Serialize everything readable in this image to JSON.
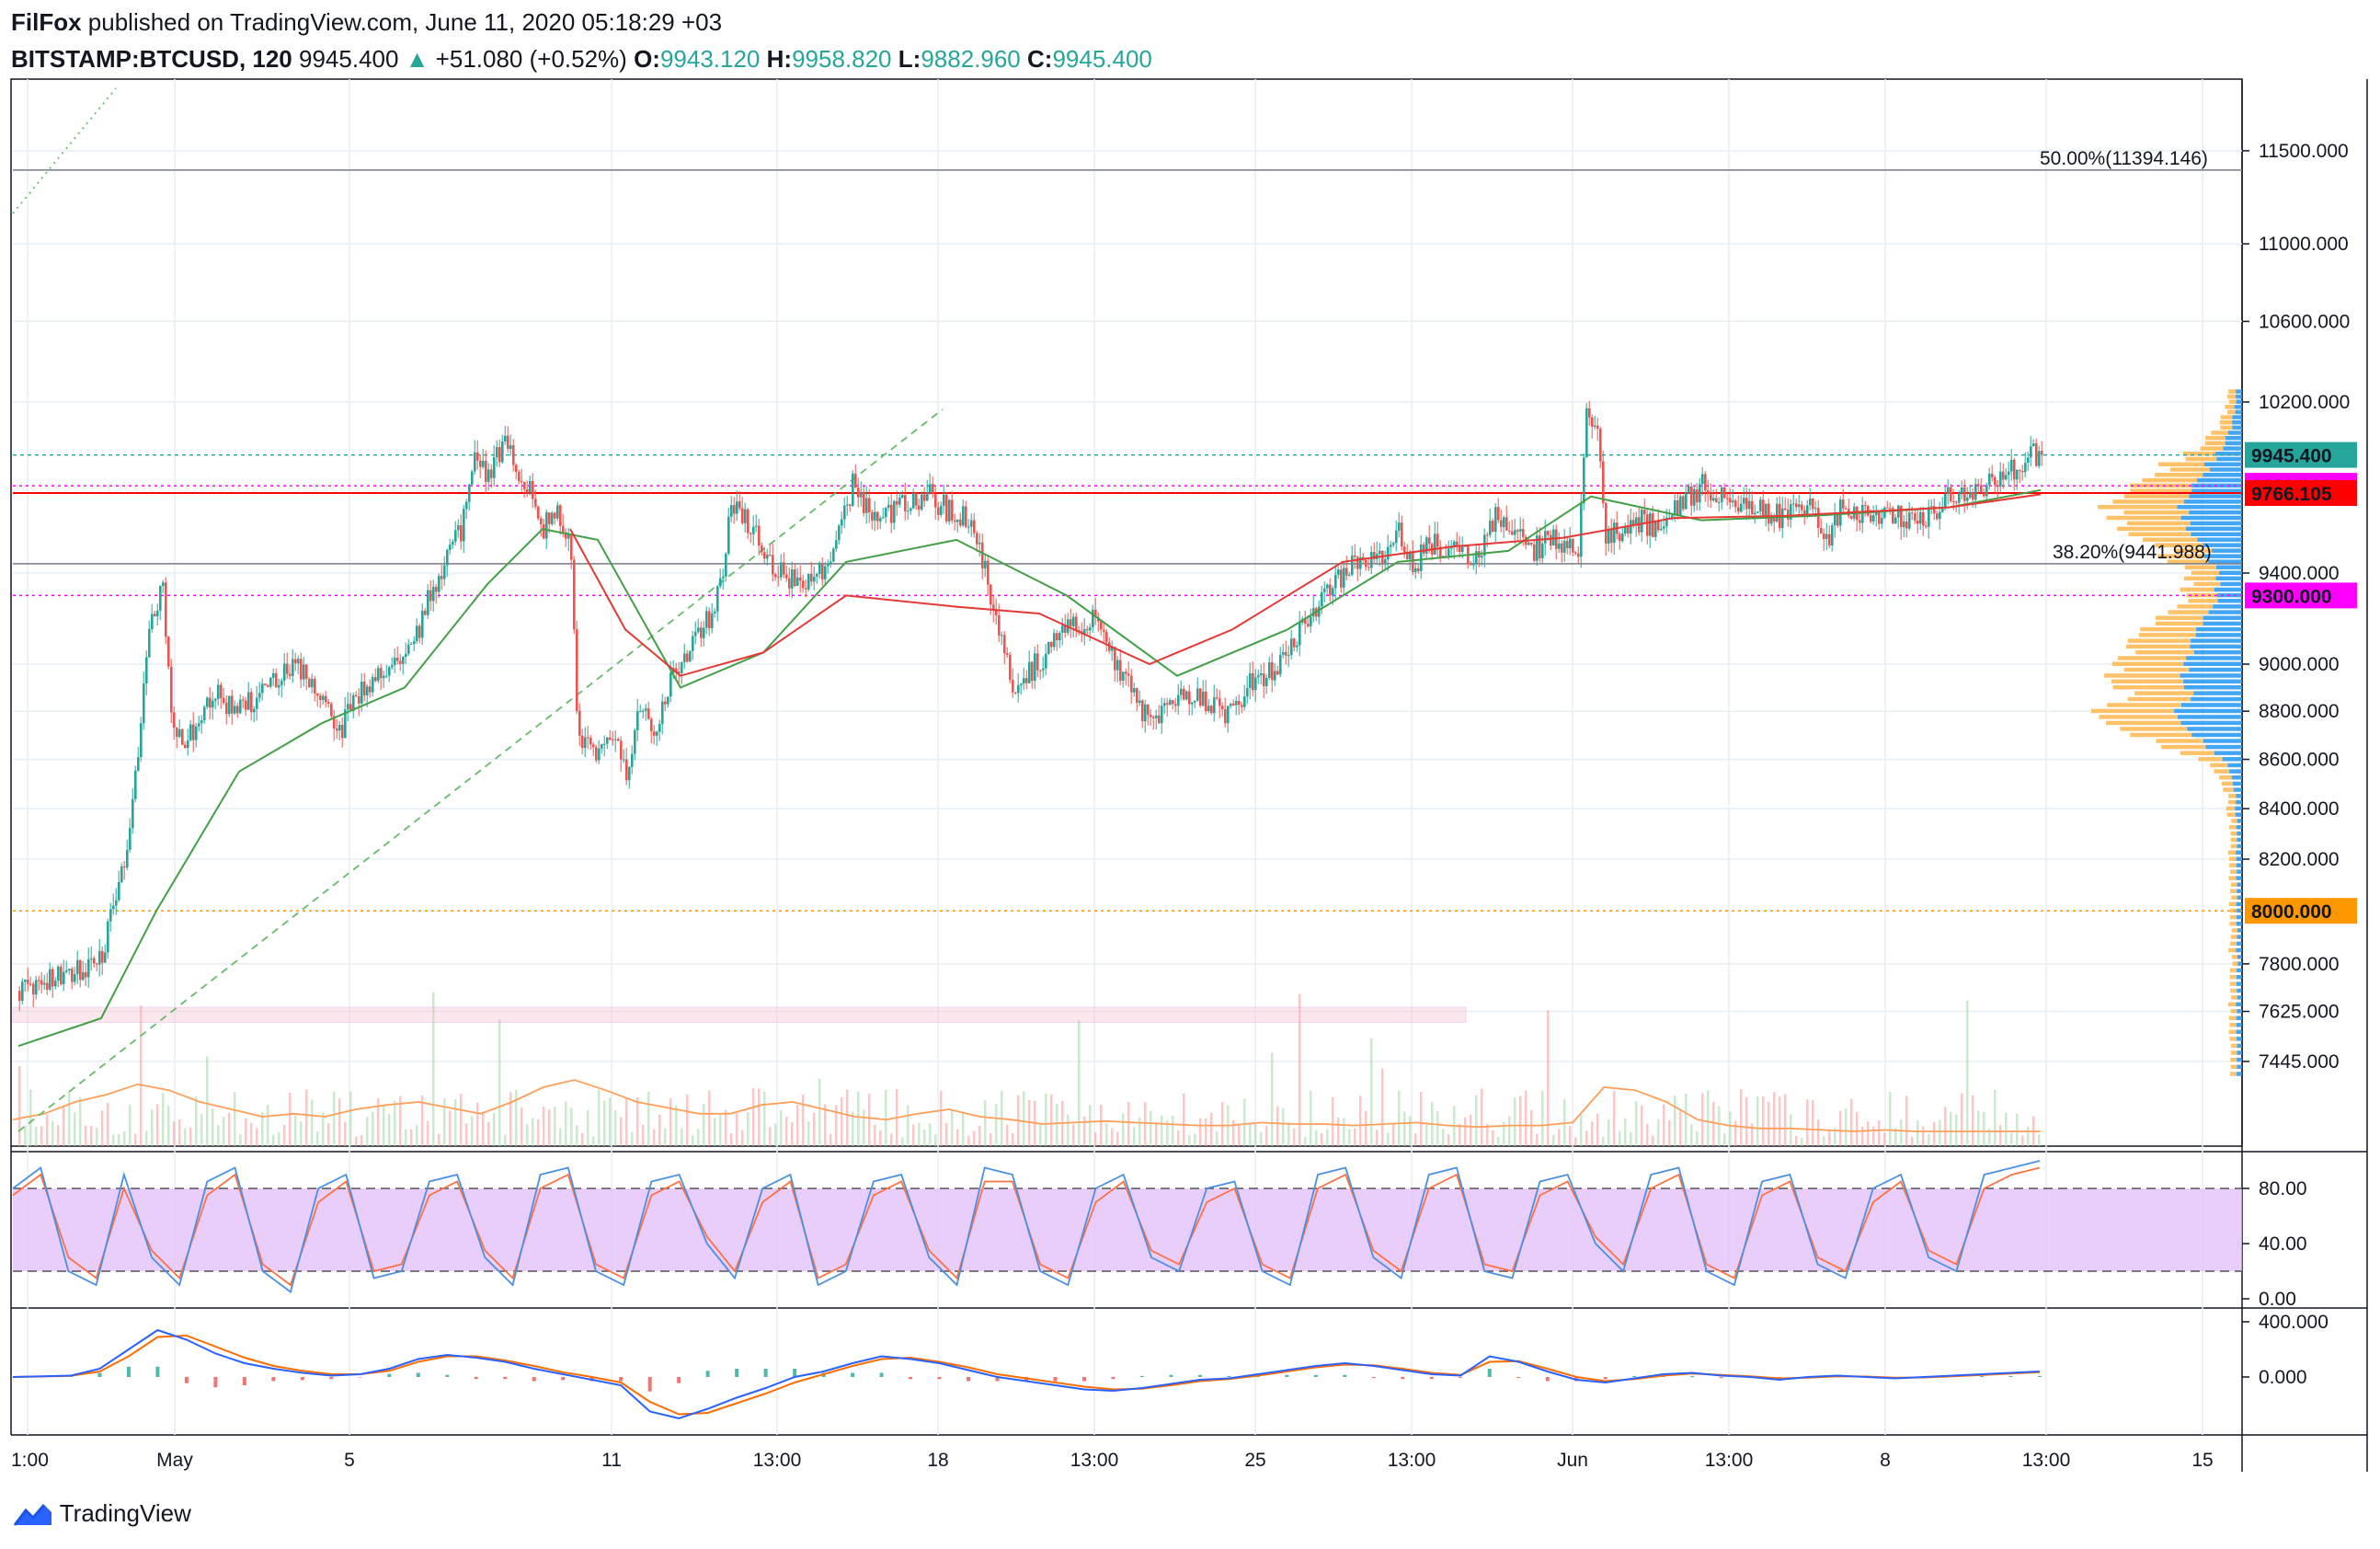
{
  "header": {
    "author": "FilFox",
    "published": " published on TradingView.com, June 11, 2020 05:18:29 +03",
    "symbol": "BITSTAMP:BTCUSD, 120",
    "last": "9945.400",
    "arrow": "▲",
    "change": "+51.080 (+0.52%)",
    "o_label": "O:",
    "o": "9943.120",
    "h_label": "H:",
    "h": "9958.820",
    "l_label": "L:",
    "l": "9882.960",
    "c_label": "C:",
    "c": "9945.400"
  },
  "footer": {
    "brand": "TradingView"
  },
  "colors": {
    "up": "#26a69a",
    "down": "#ef5350",
    "grid": "#e6eef5",
    "ma_green": "#43a047",
    "ma_red": "#e53935",
    "magenta": "#ff00ff",
    "red_level": "#ff0000",
    "orange": "#ff9800",
    "stoch_band": "#e1bdfb",
    "stoch_k": "#4a90e2",
    "stoch_d": "#ff7043",
    "vp_blue": "#2196f3",
    "vp_orange": "#ffb74d"
  },
  "chart_data": {
    "type": "candlestick",
    "price_axis": {
      "ticks": [
        "11500.000",
        "11000.000",
        "10600.000",
        "10200.000",
        "9400.000",
        "9000.000",
        "8800.000",
        "8600.000",
        "8400.000",
        "8200.000",
        "7800.000",
        "7625.000",
        "7445.000"
      ],
      "scale": "log"
    },
    "time_axis": {
      "ticks": [
        "1:00",
        "May",
        "5",
        "11",
        "13:00",
        "18",
        "13:00",
        "25",
        "13:00",
        "Jun",
        "13:00",
        "8",
        "13:00",
        "15"
      ]
    },
    "price_tags": [
      {
        "value": 9945.4,
        "label": "9945.400",
        "color": "#26a69a",
        "text_color": "#131722"
      },
      {
        "value": 9800,
        "label": "9800.000",
        "color": "#ff00ff",
        "text_color": "#ffffff"
      },
      {
        "value": 9766.105,
        "label": "9766.105",
        "color": "#ff0000",
        "text_color": "#131722"
      },
      {
        "value": 9300,
        "label": "9300.000",
        "color": "#ff00ff",
        "text_color": "#ffffff"
      },
      {
        "value": 8000,
        "label": "8000.000",
        "color": "#ff9800",
        "text_color": "#131722"
      }
    ],
    "fib_levels": [
      {
        "label": "50.00%(11394.146)",
        "value": 11394.146
      },
      {
        "label": "38.20%(9441.988)",
        "value": 9441.988
      }
    ],
    "close_path": [
      [
        0,
        7700
      ],
      [
        15,
        7750
      ],
      [
        30,
        7820
      ],
      [
        40,
        8300
      ],
      [
        45,
        8900
      ],
      [
        48,
        9200
      ],
      [
        52,
        9330
      ],
      [
        55,
        8800
      ],
      [
        60,
        8650
      ],
      [
        70,
        8880
      ],
      [
        80,
        8800
      ],
      [
        90,
        8900
      ],
      [
        100,
        9000
      ],
      [
        110,
        8850
      ],
      [
        115,
        8700
      ],
      [
        125,
        8900
      ],
      [
        135,
        9000
      ],
      [
        145,
        9150
      ],
      [
        150,
        9350
      ],
      [
        155,
        9450
      ],
      [
        160,
        9600
      ],
      [
        165,
        9950
      ],
      [
        170,
        9850
      ],
      [
        175,
        10000
      ],
      [
        180,
        9900
      ],
      [
        185,
        9800
      ],
      [
        190,
        9600
      ],
      [
        195,
        9700
      ],
      [
        200,
        9500
      ],
      [
        202,
        8750
      ],
      [
        205,
        8650
      ],
      [
        210,
        8600
      ],
      [
        215,
        8700
      ],
      [
        220,
        8550
      ],
      [
        225,
        8800
      ],
      [
        230,
        8700
      ],
      [
        235,
        8900
      ],
      [
        240,
        9000
      ],
      [
        245,
        9100
      ],
      [
        250,
        9200
      ],
      [
        255,
        9400
      ],
      [
        258,
        9750
      ],
      [
        262,
        9650
      ],
      [
        268,
        9550
      ],
      [
        275,
        9400
      ],
      [
        282,
        9350
      ],
      [
        290,
        9400
      ],
      [
        298,
        9600
      ],
      [
        302,
        9800
      ],
      [
        310,
        9650
      ],
      [
        320,
        9700
      ],
      [
        330,
        9750
      ],
      [
        340,
        9650
      ],
      [
        345,
        9650
      ],
      [
        350,
        9400
      ],
      [
        355,
        9150
      ],
      [
        360,
        8900
      ],
      [
        365,
        8950
      ],
      [
        372,
        9050
      ],
      [
        380,
        9150
      ],
      [
        390,
        9200
      ],
      [
        398,
        9000
      ],
      [
        405,
        8850
      ],
      [
        410,
        8750
      ],
      [
        415,
        8800
      ],
      [
        420,
        8850
      ],
      [
        430,
        8850
      ],
      [
        437,
        8780
      ],
      [
        445,
        8900
      ],
      [
        452,
        8950
      ],
      [
        460,
        9050
      ],
      [
        468,
        9200
      ],
      [
        475,
        9350
      ],
      [
        485,
        9450
      ],
      [
        495,
        9500
      ],
      [
        500,
        9600
      ],
      [
        505,
        9400
      ],
      [
        510,
        9550
      ],
      [
        520,
        9500
      ],
      [
        528,
        9450
      ],
      [
        535,
        9650
      ],
      [
        540,
        9600
      ],
      [
        548,
        9500
      ],
      [
        555,
        9550
      ],
      [
        565,
        9500
      ],
      [
        568,
        10150
      ],
      [
        572,
        10100
      ],
      [
        575,
        9550
      ],
      [
        585,
        9650
      ],
      [
        595,
        9600
      ],
      [
        600,
        9700
      ],
      [
        610,
        9800
      ],
      [
        620,
        9750
      ],
      [
        630,
        9700
      ],
      [
        640,
        9650
      ],
      [
        650,
        9700
      ],
      [
        655,
        9550
      ],
      [
        660,
        9700
      ],
      [
        670,
        9650
      ],
      [
        680,
        9650
      ],
      [
        690,
        9650
      ],
      [
        700,
        9750
      ],
      [
        710,
        9800
      ],
      [
        720,
        9850
      ],
      [
        725,
        9900
      ],
      [
        730,
        9950
      ],
      [
        733,
        9945.4
      ]
    ],
    "ma_green_path": [
      [
        0,
        7500
      ],
      [
        30,
        7600
      ],
      [
        50,
        8000
      ],
      [
        80,
        8550
      ],
      [
        110,
        8750
      ],
      [
        140,
        8900
      ],
      [
        170,
        9350
      ],
      [
        190,
        9600
      ],
      [
        210,
        9550
      ],
      [
        240,
        8900
      ],
      [
        270,
        9050
      ],
      [
        300,
        9450
      ],
      [
        340,
        9550
      ],
      [
        380,
        9300
      ],
      [
        420,
        8950
      ],
      [
        460,
        9150
      ],
      [
        500,
        9450
      ],
      [
        540,
        9500
      ],
      [
        570,
        9750
      ],
      [
        610,
        9640
      ],
      [
        650,
        9660
      ],
      [
        700,
        9700
      ],
      [
        733,
        9780
      ]
    ],
    "ma_red_path": [
      [
        200,
        9600
      ],
      [
        220,
        9150
      ],
      [
        240,
        8950
      ],
      [
        270,
        9050
      ],
      [
        300,
        9300
      ],
      [
        340,
        9250
      ],
      [
        370,
        9220
      ],
      [
        410,
        9000
      ],
      [
        440,
        9150
      ],
      [
        480,
        9450
      ],
      [
        520,
        9520
      ],
      [
        560,
        9560
      ],
      [
        600,
        9650
      ],
      [
        640,
        9660
      ],
      [
        700,
        9700
      ],
      [
        733,
        9760
      ]
    ],
    "stoch": {
      "levels": [
        "80.00",
        "40.00",
        "0.00"
      ],
      "k": [
        80,
        95,
        20,
        10,
        90,
        30,
        10,
        85,
        95,
        20,
        5,
        80,
        90,
        15,
        20,
        85,
        90,
        30,
        10,
        90,
        95,
        20,
        10,
        85,
        90,
        40,
        15,
        80,
        90,
        10,
        20,
        85,
        90,
        30,
        10,
        95,
        90,
        20,
        10,
        80,
        90,
        30,
        20,
        80,
        85,
        20,
        10,
        90,
        95,
        30,
        15,
        90,
        95,
        20,
        15,
        85,
        90,
        40,
        20,
        90,
        95,
        20,
        10,
        85,
        90,
        25,
        15,
        80,
        90,
        30,
        20,
        90,
        95,
        100
      ],
      "d": [
        75,
        90,
        30,
        15,
        80,
        35,
        15,
        75,
        90,
        25,
        10,
        70,
        85,
        20,
        25,
        75,
        85,
        35,
        15,
        80,
        90,
        25,
        15,
        75,
        85,
        45,
        20,
        70,
        85,
        15,
        25,
        75,
        85,
        35,
        15,
        85,
        85,
        25,
        15,
        70,
        85,
        35,
        25,
        70,
        80,
        25,
        15,
        80,
        90,
        35,
        20,
        80,
        90,
        25,
        20,
        75,
        85,
        45,
        25,
        80,
        90,
        25,
        15,
        75,
        85,
        30,
        20,
        70,
        85,
        35,
        25,
        80,
        90,
        95
      ]
    },
    "macd": {
      "levels": [
        "400.000",
        "0.000"
      ],
      "macd_line": [
        0,
        5,
        10,
        60,
        200,
        340,
        270,
        170,
        100,
        60,
        30,
        10,
        20,
        60,
        130,
        160,
        140,
        110,
        60,
        20,
        -20,
        -60,
        -250,
        -300,
        -230,
        -150,
        -80,
        0,
        40,
        100,
        150,
        130,
        100,
        50,
        0,
        -30,
        -60,
        -90,
        -100,
        -80,
        -50,
        -20,
        -10,
        20,
        50,
        80,
        100,
        80,
        50,
        20,
        10,
        150,
        110,
        40,
        -20,
        -40,
        -10,
        20,
        30,
        10,
        0,
        -20,
        0,
        10,
        0,
        -10,
        0,
        10,
        20,
        30,
        40
      ],
      "signal_line": [
        0,
        3,
        8,
        40,
        150,
        290,
        300,
        220,
        140,
        80,
        45,
        20,
        20,
        45,
        110,
        150,
        150,
        120,
        80,
        35,
        0,
        -40,
        -180,
        -270,
        -260,
        -190,
        -120,
        -40,
        20,
        80,
        130,
        140,
        110,
        70,
        20,
        -10,
        -40,
        -70,
        -90,
        -85,
        -60,
        -30,
        -15,
        10,
        40,
        70,
        90,
        85,
        60,
        30,
        15,
        110,
        115,
        60,
        0,
        -30,
        -15,
        10,
        25,
        15,
        5,
        -10,
        -5,
        5,
        3,
        -5,
        -3,
        5,
        15,
        25,
        35
      ]
    },
    "volume_ma": [
      0.18,
      0.22,
      0.3,
      0.35,
      0.42,
      0.38,
      0.3,
      0.25,
      0.2,
      0.22,
      0.2,
      0.25,
      0.28,
      0.3,
      0.26,
      0.22,
      0.3,
      0.4,
      0.45,
      0.38,
      0.3,
      0.26,
      0.22,
      0.22,
      0.28,
      0.3,
      0.25,
      0.2,
      0.18,
      0.22,
      0.25,
      0.2,
      0.18,
      0.15,
      0.16,
      0.17,
      0.16,
      0.15,
      0.14,
      0.14,
      0.16,
      0.15,
      0.15,
      0.14,
      0.15,
      0.16,
      0.14,
      0.13,
      0.14,
      0.14,
      0.16,
      0.4,
      0.38,
      0.3,
      0.18,
      0.14,
      0.12,
      0.12,
      0.11,
      0.1,
      0.11,
      0.1,
      0.1,
      0.1,
      0.1,
      0.1
    ]
  }
}
